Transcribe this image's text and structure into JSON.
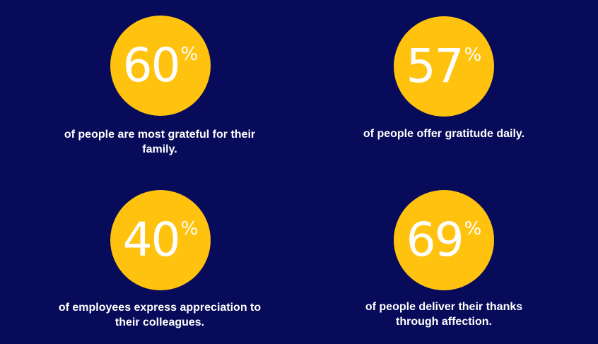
{
  "colors": {
    "background": "#070b59",
    "circle": "#ffc20e",
    "number_text": "#ffffff",
    "caption_text": "#ffffff"
  },
  "stats": [
    {
      "value": "60",
      "unit": "%",
      "caption": "of people are most grateful for their family."
    },
    {
      "value": "57",
      "unit": "%",
      "caption": "of people offer gratitude daily."
    },
    {
      "value": "40",
      "unit": "%",
      "caption": "of employees express appreciation to their colleagues."
    },
    {
      "value": "69",
      "unit": "%",
      "caption": "of people deliver their thanks through affection."
    }
  ]
}
